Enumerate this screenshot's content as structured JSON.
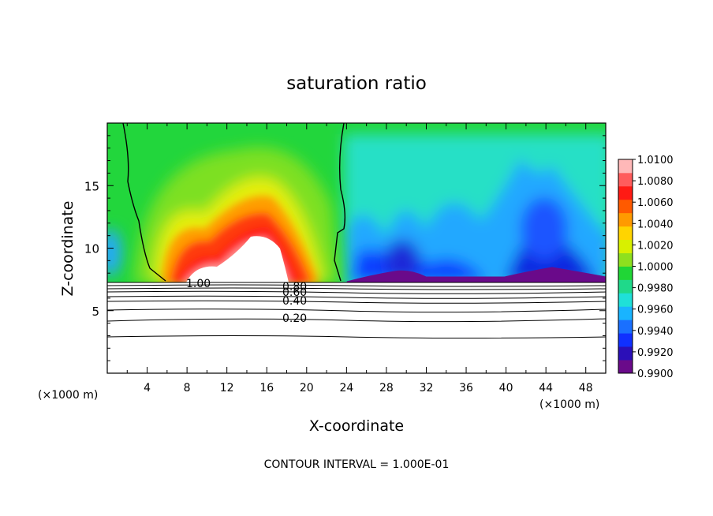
{
  "chart_data": {
    "type": "heatmap",
    "title": "saturation ratio",
    "xlabel": "X-coordinate",
    "ylabel": "Z-coordinate",
    "x_unit_left": "(×1000 m)",
    "x_unit_right": "(×1000 m)",
    "xlim": [
      0,
      50
    ],
    "ylim": [
      0,
      20
    ],
    "x_ticks": [
      "4",
      "8",
      "12",
      "16",
      "20",
      "24",
      "28",
      "32",
      "36",
      "40",
      "44",
      "48"
    ],
    "y_ticks": [
      "5",
      "10",
      "15"
    ],
    "x_tick_values": [
      4,
      8,
      12,
      16,
      20,
      24,
      28,
      32,
      36,
      40,
      44,
      48
    ],
    "y_tick_values": [
      5,
      10,
      15
    ],
    "colorbar": {
      "range": [
        0.99,
        1.01
      ],
      "labels": [
        "1.0100",
        "1.0080",
        "1.0060",
        "1.0040",
        "1.0020",
        "1.0000",
        "0.9980",
        "0.9960",
        "0.9940",
        "0.9920",
        "0.9900"
      ],
      "label_values": [
        1.01,
        1.008,
        1.006,
        1.004,
        1.002,
        1.0,
        0.998,
        0.996,
        0.994,
        0.992,
        0.99
      ],
      "colors": [
        "#6a0a8a",
        "#2b0fb8",
        "#1030ff",
        "#1a70ff",
        "#19b4ff",
        "#1fe0d8",
        "#1fd98a",
        "#20d636",
        "#8ee01e",
        "#d8f000",
        "#ffd400",
        "#ff9a00",
        "#ff5a00",
        "#ff1a14",
        "#ff5c5c",
        "#ffb8b8"
      ]
    },
    "contours": {
      "interval_label": "CONTOUR INTERVAL = 1.000E-01",
      "labels": [
        "1.00",
        "0.80",
        "0.60",
        "0.40",
        "0.20"
      ],
      "level_values": [
        1.0,
        0.8,
        0.6,
        0.4,
        0.2
      ]
    },
    "legend": "right"
  }
}
